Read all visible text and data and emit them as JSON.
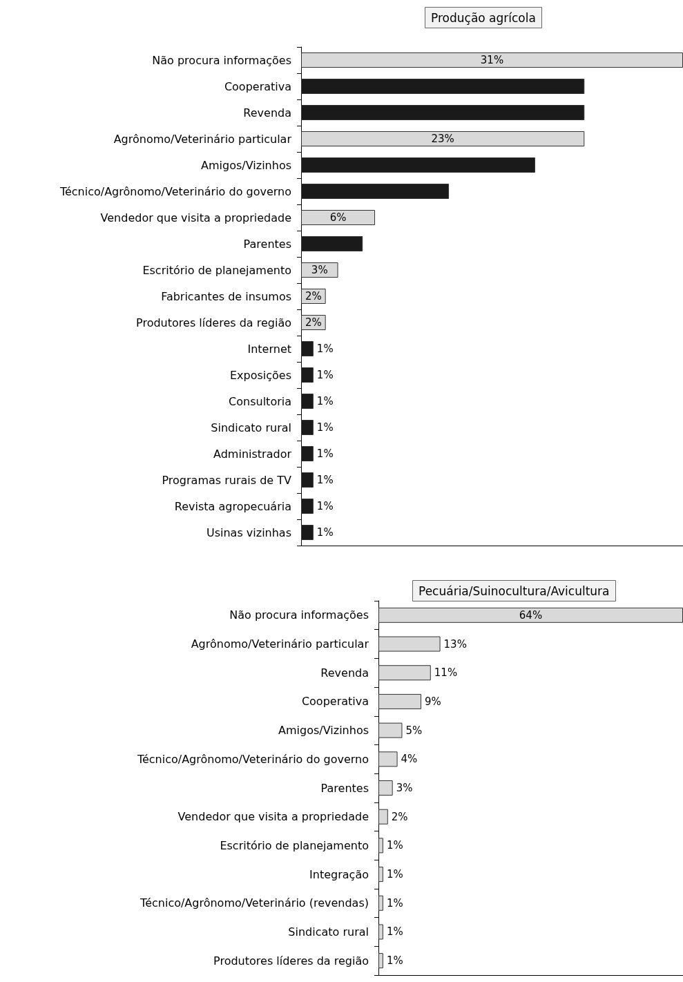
{
  "chart_data": [
    {
      "type": "bar",
      "orientation": "horizontal",
      "title": "Produção agrícola",
      "categories": [
        "Não procura informações",
        "Cooperativa",
        "Revenda",
        "Agrônomo/Veterinário particular",
        "Amigos/Vizinhos",
        "Técnico/Agrônomo/Veterinário do governo",
        "Vendedor que visita a propriedade",
        "Parentes",
        "Escritório de planejamento",
        "Fabricantes de insumos",
        "Produtores líderes da região",
        "Internet",
        "Exposições",
        "Consultoria",
        "Sindicato rural",
        "Administrador",
        "Programas rurais de TV",
        "Revista agropecuária",
        "Usinas vizinhas"
      ],
      "values": [
        31,
        23,
        23,
        23,
        19,
        12,
        6,
        5,
        3,
        2,
        2,
        1,
        1,
        1,
        1,
        1,
        1,
        1,
        1
      ],
      "value_labels": [
        "31%",
        null,
        null,
        "23%",
        null,
        null,
        "6%",
        null,
        "3%",
        "2%",
        "2%",
        "1%",
        "1%",
        "1%",
        "1%",
        "1%",
        "1%",
        "1%",
        "1%"
      ],
      "colors": [
        "#d9d9d9",
        "#1a1a1a",
        "#1a1a1a",
        "#d9d9d9",
        "#1a1a1a",
        "#1a1a1a",
        "#d9d9d9",
        "#1a1a1a",
        "#d9d9d9",
        "#d9d9d9",
        "#d9d9d9",
        "#1a1a1a",
        "#1a1a1a",
        "#1a1a1a",
        "#1a1a1a",
        "#1a1a1a",
        "#1a1a1a",
        "#1a1a1a",
        "#1a1a1a"
      ],
      "grid": false,
      "tick_labels": "y"
    },
    {
      "type": "bar",
      "orientation": "horizontal",
      "title": "Pecuária/Suinocultura/Avicultura",
      "categories": [
        "Não procura informações",
        "Agrônomo/Veterinário particular",
        "Revenda",
        "Cooperativa",
        "Amigos/Vizinhos",
        "Técnico/Agrônomo/Veterinário do governo",
        "Parentes",
        "Vendedor que visita a propriedade",
        "Escritório de planejamento",
        "Integração",
        "Técnico/Agrônomo/Veterinário (revendas)",
        "Sindicato rural",
        "Produtores líderes da região"
      ],
      "values": [
        64,
        13,
        11,
        9,
        5,
        4,
        3,
        2,
        1,
        1,
        1,
        1,
        1
      ],
      "value_labels": [
        "64%",
        "13%",
        "11%",
        "9%",
        "5%",
        "4%",
        "3%",
        "2%",
        "1%",
        "1%",
        "1%",
        "1%",
        "1%"
      ],
      "colors": [
        "#d9d9d9",
        "#d9d9d9",
        "#d9d9d9",
        "#d9d9d9",
        "#d9d9d9",
        "#d9d9d9",
        "#d9d9d9",
        "#d9d9d9",
        "#d9d9d9",
        "#d9d9d9",
        "#d9d9d9",
        "#d9d9d9",
        "#d9d9d9"
      ],
      "grid": false,
      "tick_labels": "y"
    }
  ]
}
